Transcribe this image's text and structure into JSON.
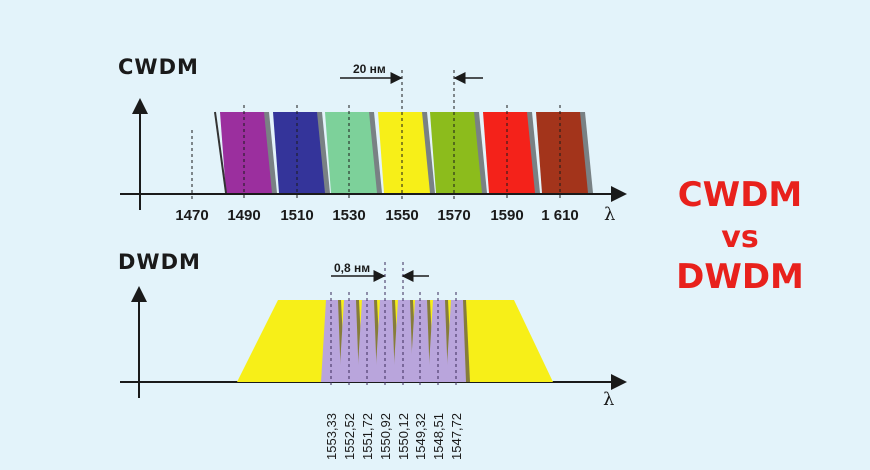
{
  "cwdm": {
    "title": "CWDM",
    "spacing_label": "20 нм",
    "axis_symbol": "λ",
    "ticks": [
      "1470",
      "1490",
      "1510",
      "1530",
      "1550",
      "1570",
      "1590",
      "1 610"
    ],
    "channel_colors": [
      "#9b2f9e",
      "#34349a",
      "#7dd19a",
      "#f7ef18",
      "#8cbc1c",
      "#f4221a",
      "#a3341b"
    ]
  },
  "dwdm": {
    "title": "DWDM",
    "spacing_label": "0,8 нм",
    "axis_symbol": "λ",
    "ticks": [
      "1553,33",
      "1552,52",
      "1551,72",
      "1550,92",
      "1550,12",
      "1549,32",
      "1548,51",
      "1547,72"
    ],
    "band_color": "#f7ef18",
    "channel_color": "#b9a5dc"
  },
  "heading": {
    "line1": "CWDM",
    "line2": "vs",
    "line3": "DWDM",
    "color": "#e8211c"
  },
  "chart_data": [
    {
      "type": "area",
      "title": "CWDM",
      "xlabel": "λ",
      "categories": [
        "1470",
        "1490",
        "1510",
        "1530",
        "1550",
        "1570",
        "1590",
        "1610"
      ],
      "channels_nm": [
        1490,
        1510,
        1530,
        1550,
        1570,
        1590,
        1610
      ],
      "channel_spacing": "20 нм",
      "annotations": [
        "20 нм"
      ]
    },
    {
      "type": "area",
      "title": "DWDM",
      "xlabel": "λ",
      "categories": [
        "1553,33",
        "1552,52",
        "1551,72",
        "1550,92",
        "1550,12",
        "1549,32",
        "1548,51",
        "1547,72"
      ],
      "channels_nm": [
        1553.33,
        1552.52,
        1551.72,
        1550.92,
        1550.12,
        1549.32,
        1548.51,
        1547.72
      ],
      "channel_spacing": "0,8 нм",
      "annotations": [
        "0,8 нм"
      ]
    }
  ]
}
